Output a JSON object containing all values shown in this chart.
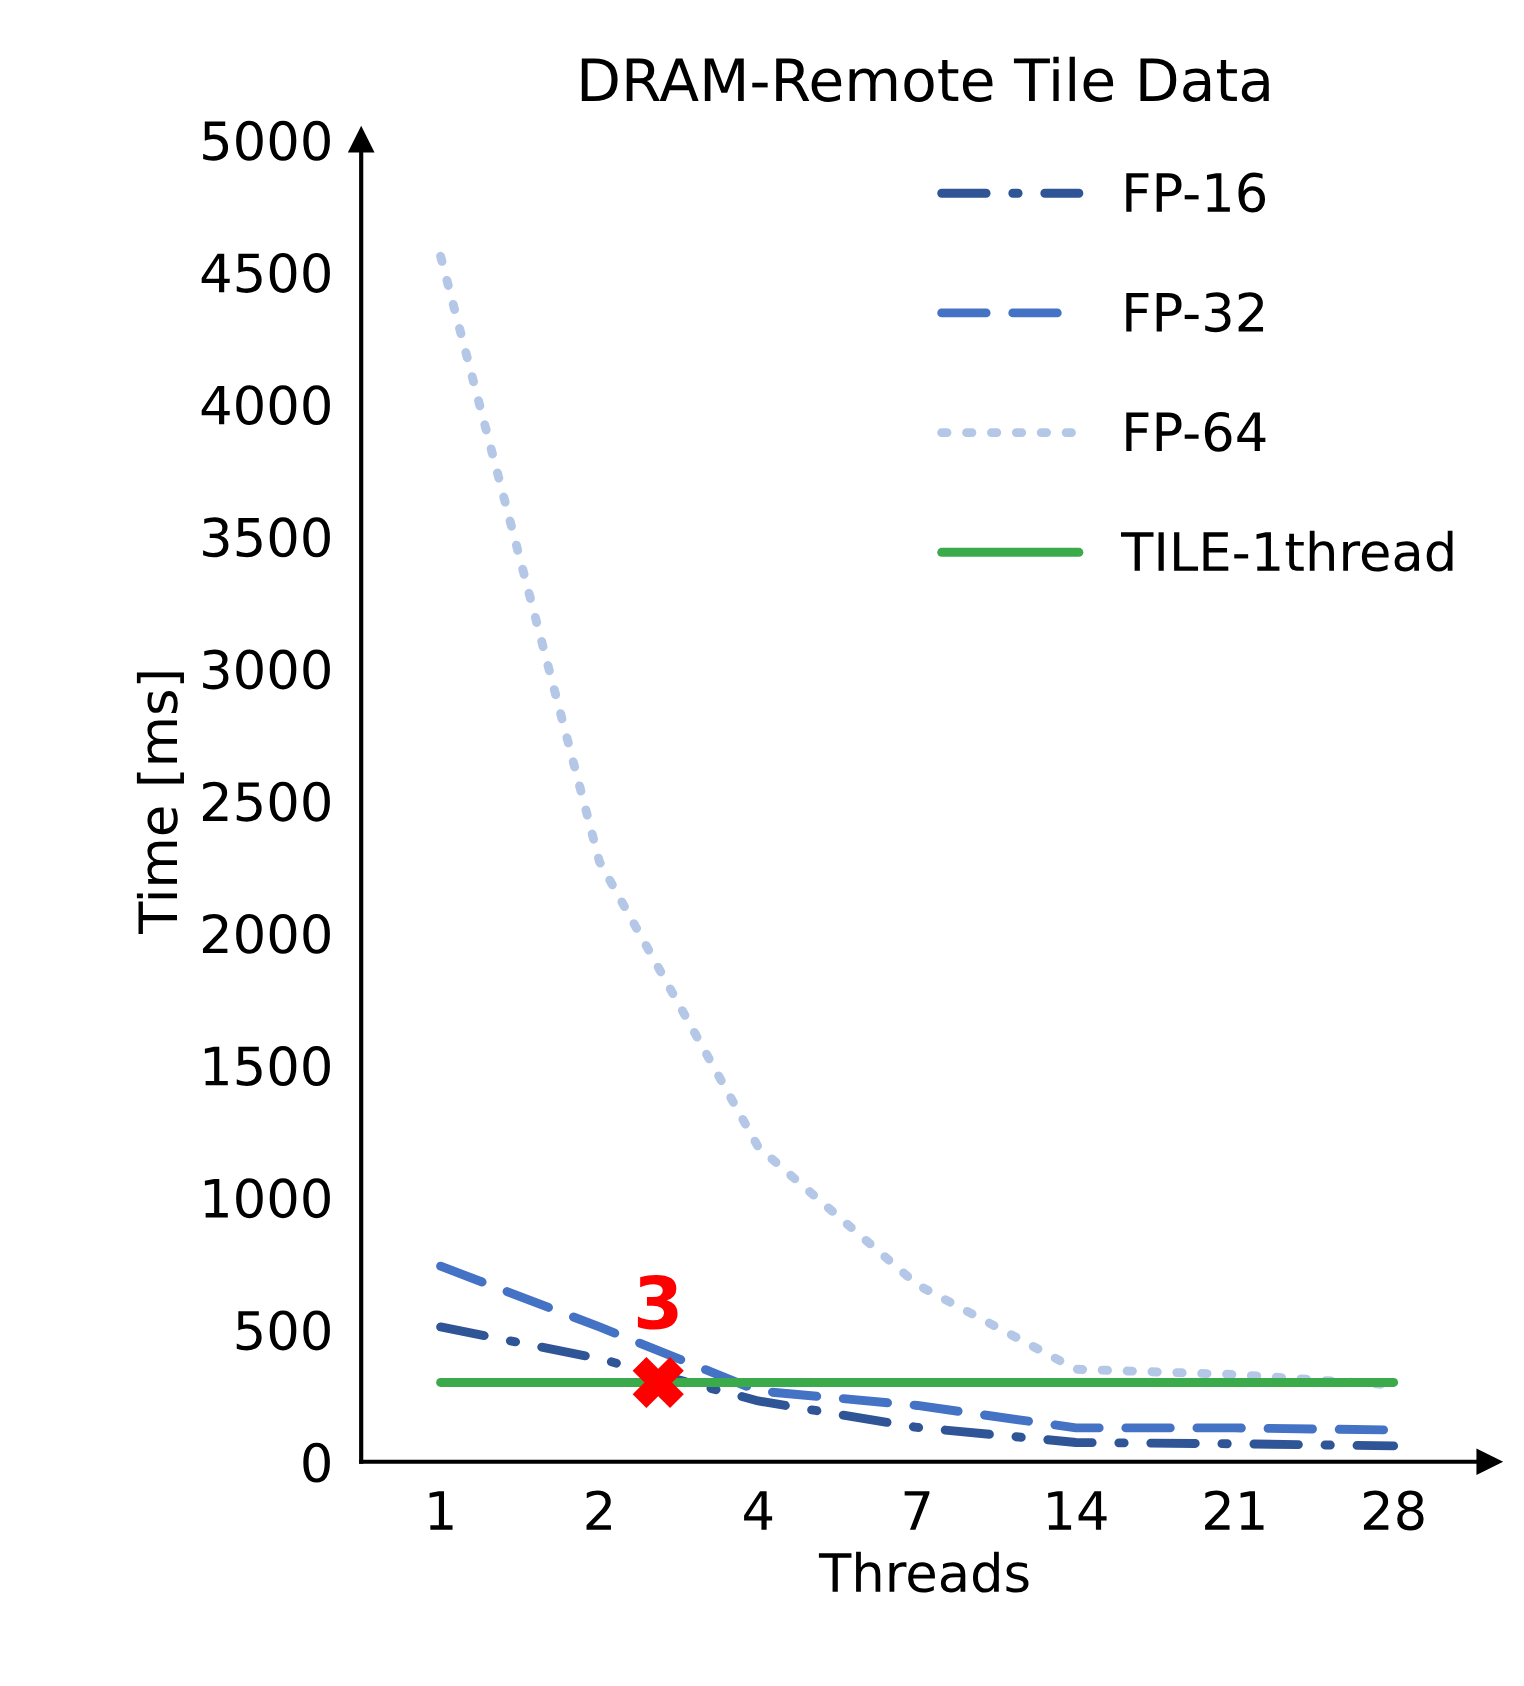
{
  "chart_data": {
    "type": "line",
    "title": "DRAM-Remote Tile Data",
    "xlabel": "Threads",
    "ylabel": "Time [ms]",
    "categories": [
      "1",
      "2",
      "4",
      "7",
      "14",
      "21",
      "28"
    ],
    "series": [
      {
        "name": "FP-16",
        "color": "#2f5597",
        "line_style": "dashdot",
        "values": [
          510,
          390,
          230,
          130,
          73,
          68,
          60
        ]
      },
      {
        "name": "FP-32",
        "color": "#4472c4",
        "line_style": "dashed",
        "values": [
          740,
          510,
          268,
          213,
          128,
          128,
          120
        ]
      },
      {
        "name": "FP-64",
        "color": "#b4c7e7",
        "line_style": "dotted",
        "values": [
          4560,
          2270,
          1190,
          670,
          350,
          330,
          290
        ]
      },
      {
        "name": "TILE-1thread",
        "color": "#3aaa4a",
        "line_style": "solid",
        "values": [
          300,
          300,
          300,
          300,
          300,
          300,
          300
        ]
      }
    ],
    "annotations": [
      {
        "text": "3",
        "y": 300
      }
    ],
    "ylim": [
      0,
      5000
    ],
    "yticks": [
      0,
      500,
      1000,
      1500,
      2000,
      2500,
      3000,
      3500,
      4000,
      4500,
      5000
    ],
    "grid": false,
    "legend": "top right",
    "marker": "none"
  }
}
